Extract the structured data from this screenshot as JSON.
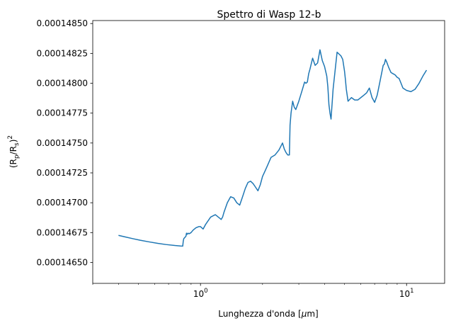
{
  "chart_data": {
    "type": "line",
    "title": "Spettro di Wasp 12-b",
    "xlabel_text": "Lunghezza d'onda [",
    "xlabel_mu": "μ",
    "xlabel_tail": "m]",
    "ylabel_text": "(R",
    "ylabel_sub_p": "p",
    "ylabel_mid": "/R",
    "ylabel_sub_s": "s",
    "ylabel_close": ")",
    "ylabel_exp": "2",
    "xscale": "log",
    "xlim": [
      0.3,
      15.3
    ],
    "ylim": [
      0.000146325,
      0.000148525
    ],
    "grid": false,
    "x_ticks": [
      {
        "value": 1,
        "base": "10",
        "exp": "0"
      },
      {
        "value": 10,
        "base": "10",
        "exp": "1"
      }
    ],
    "y_ticks": [
      {
        "value": 0.0001465,
        "label": "0.00014650"
      },
      {
        "value": 0.00014675,
        "label": "0.00014675"
      },
      {
        "value": 0.000147,
        "label": "0.00014700"
      },
      {
        "value": 0.00014725,
        "label": "0.00014725"
      },
      {
        "value": 0.0001475,
        "label": "0.00014750"
      },
      {
        "value": 0.00014775,
        "label": "0.00014775"
      },
      {
        "value": 0.000148,
        "label": "0.00014800"
      },
      {
        "value": 0.00014825,
        "label": "0.00014825"
      },
      {
        "value": 0.0001485,
        "label": "0.00014850"
      }
    ],
    "series": [
      {
        "color": "#1f77b4",
        "x": [
          0.4,
          0.43,
          0.47,
          0.51,
          0.56,
          0.62,
          0.68,
          0.75,
          0.8,
          0.82,
          0.825,
          0.83,
          0.84,
          0.85,
          0.855,
          0.86,
          0.87,
          0.88,
          0.89,
          0.9,
          0.92,
          0.95,
          0.98,
          1.0,
          1.03,
          1.06,
          1.09,
          1.12,
          1.15,
          1.18,
          1.2,
          1.22,
          1.24,
          1.26,
          1.28,
          1.3,
          1.35,
          1.4,
          1.45,
          1.5,
          1.55,
          1.6,
          1.65,
          1.7,
          1.75,
          1.8,
          1.85,
          1.9,
          1.95,
          2.0,
          2.05,
          2.1,
          2.2,
          2.3,
          2.4,
          2.45,
          2.5,
          2.55,
          2.6,
          2.65,
          2.7,
          2.72,
          2.75,
          2.8,
          2.85,
          2.9,
          3.0,
          3.1,
          3.2,
          3.25,
          3.3,
          3.35,
          3.4,
          3.5,
          3.6,
          3.7,
          3.8,
          3.9,
          4.0,
          4.1,
          4.15,
          4.2,
          4.25,
          4.3,
          4.4,
          4.6,
          4.8,
          4.9,
          5.0,
          5.05,
          5.1,
          5.2,
          5.4,
          5.6,
          5.8,
          6.0,
          6.2,
          6.4,
          6.6,
          6.8,
          7.0,
          7.2,
          7.4,
          7.6,
          7.7,
          7.8,
          7.9,
          8.0,
          8.2,
          8.4,
          8.6,
          8.8,
          9.0,
          9.2,
          9.4,
          9.6,
          9.8,
          10.0,
          10.5,
          11.0,
          11.5,
          12.0,
          12.5
        ],
        "y": [
          0.000146727,
          0.000146714,
          0.000146699,
          0.000146686,
          0.000146673,
          0.00014666,
          0.00014665,
          0.000146642,
          0.000146638,
          0.000146637,
          0.00014668,
          0.0001467,
          0.00014671,
          0.00014672,
          0.000146745,
          0.000146735,
          0.000146745,
          0.00014674,
          0.000146745,
          0.00014675,
          0.00014677,
          0.00014679,
          0.0001468,
          0.0001468,
          0.00014678,
          0.00014682,
          0.00014685,
          0.00014688,
          0.00014689,
          0.0001469,
          0.00014689,
          0.00014688,
          0.00014687,
          0.00014686,
          0.00014688,
          0.00014692,
          0.000147,
          0.00014705,
          0.00014704,
          0.000147,
          0.00014698,
          0.00014705,
          0.00014712,
          0.00014717,
          0.00014718,
          0.00014716,
          0.00014713,
          0.0001471,
          0.00014715,
          0.00014722,
          0.00014726,
          0.0001473,
          0.00014738,
          0.0001474,
          0.00014744,
          0.00014747,
          0.0001475,
          0.00014745,
          0.00014742,
          0.0001474,
          0.0001474,
          0.00014765,
          0.00014775,
          0.00014785,
          0.0001478,
          0.00014778,
          0.00014785,
          0.00014793,
          0.00014801,
          0.000148,
          0.00014801,
          0.00014808,
          0.00014812,
          0.00014821,
          0.00014815,
          0.00014817,
          0.00014828,
          0.00014819,
          0.00014814,
          0.00014806,
          0.00014797,
          0.00014782,
          0.00014775,
          0.0001477,
          0.00014795,
          0.00014826,
          0.00014823,
          0.0001482,
          0.0001481,
          0.00014803,
          0.00014795,
          0.00014785,
          0.00014788,
          0.00014786,
          0.00014786,
          0.00014788,
          0.0001479,
          0.00014792,
          0.00014796,
          0.00014788,
          0.00014784,
          0.0001479,
          0.000148,
          0.0001481,
          0.00014815,
          0.00014816,
          0.0001482,
          0.00014818,
          0.00014813,
          0.00014809,
          0.00014808,
          0.00014807,
          0.00014805,
          0.00014804,
          0.000148,
          0.00014796,
          0.00014795,
          0.00014794,
          0.00014793,
          0.00014795,
          0.000148,
          0.00014806,
          0.00014811
        ]
      }
    ]
  }
}
